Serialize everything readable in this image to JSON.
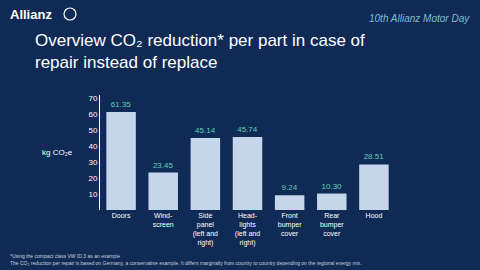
{
  "header": {
    "logo": "Allianz",
    "event": "10th Allianz Motor Day"
  },
  "chart_data": {
    "type": "bar",
    "title": "Overview CO₂ reduction* per part in case of\nrepair instead of replace",
    "ylabel": "kg CO₂e",
    "categories": [
      "Doors",
      "Wind-\nscreen",
      "Side\npanel\n(left and\nright)",
      "Head-\nlights\n(left and\nright)",
      "Front\nbumper\ncover",
      "Rear\nbumper\ncover",
      "Hood"
    ],
    "values": [
      61.35,
      23.45,
      45.14,
      45.74,
      9.24,
      10.3,
      28.51
    ],
    "value_labels": [
      "61.35",
      "23.45",
      "45.14",
      "45.74",
      "9.24",
      "10.30",
      "28.51"
    ],
    "color": "#c5d6ea",
    "ylim": [
      0,
      72
    ],
    "yticks": [
      10,
      20,
      30,
      40,
      50,
      60,
      70
    ],
    "grid": false,
    "data_labels": true
  },
  "footnotes": [
    "*Using the compact class VW ID.3 as an example",
    "The CO₂ reduction per repair is based on Germany, a conservative example. It differs marginally from country to country depending on the regional energy mix."
  ]
}
